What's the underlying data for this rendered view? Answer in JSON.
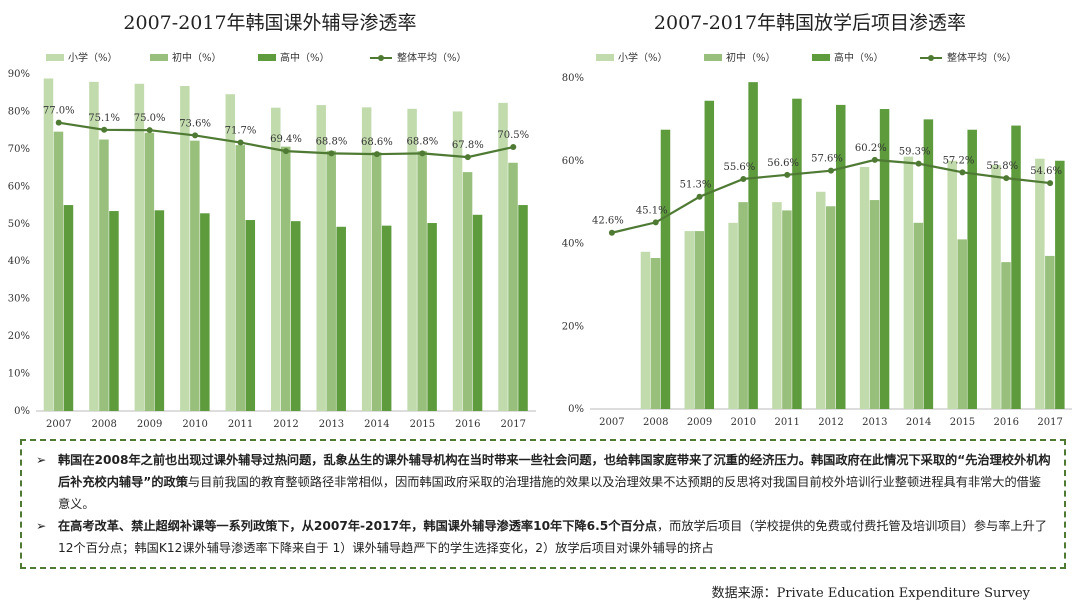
{
  "colors": {
    "primary": "#c2dbad",
    "junior": "#98c07c",
    "senior": "#5d9b3d",
    "average": "#4f7a34"
  },
  "chart_data": [
    {
      "type": "bar",
      "title": "2007-2017年韩国课外辅导渗透率",
      "categories": [
        "2007",
        "2008",
        "2009",
        "2010",
        "2011",
        "2012",
        "2013",
        "2014",
        "2015",
        "2016",
        "2017"
      ],
      "series": [
        {
          "name": "小学（%）",
          "values": [
            88.8,
            87.9,
            87.4,
            86.8,
            84.6,
            81.0,
            81.7,
            81.1,
            80.7,
            80.0,
            82.3
          ]
        },
        {
          "name": "初中（%）",
          "values": [
            74.6,
            72.5,
            74.3,
            72.2,
            71.0,
            70.6,
            69.5,
            69.1,
            69.4,
            63.8,
            66.3
          ]
        },
        {
          "name": "高中（%）",
          "values": [
            55.0,
            53.4,
            53.6,
            52.8,
            51.0,
            50.7,
            49.2,
            49.5,
            50.2,
            52.4,
            55.0
          ]
        }
      ],
      "line_series": {
        "name": "整体平均（%）",
        "values": [
          77.0,
          75.1,
          75.0,
          73.6,
          71.7,
          69.4,
          68.8,
          68.6,
          68.8,
          67.8,
          70.5
        ],
        "labels": [
          "77.0%",
          "75.1%",
          "75.0%",
          "73.6%",
          "71.7%",
          "69.4%",
          "68.8%",
          "68.6%",
          "68.8%",
          "67.8%",
          "70.5%"
        ]
      },
      "ylim": [
        0,
        90
      ],
      "yticks": [
        "0%",
        "10%",
        "20%",
        "30%",
        "40%",
        "50%",
        "60%",
        "70%",
        "80%",
        "90%"
      ],
      "grid": false
    },
    {
      "type": "bar",
      "title": "2007-2017年韩国放学后项目渗透率",
      "categories": [
        "2007",
        "2008",
        "2009",
        "2010",
        "2011",
        "2012",
        "2013",
        "2014",
        "2015",
        "2016",
        "2017"
      ],
      "series": [
        {
          "name": "小学（%）",
          "values": [
            null,
            38.0,
            43.0,
            45.0,
            50.0,
            52.5,
            58.5,
            61.0,
            60.0,
            59.0,
            60.5
          ]
        },
        {
          "name": "初中（%）",
          "values": [
            null,
            36.5,
            43.0,
            50.0,
            48.0,
            49.0,
            50.5,
            45.0,
            41.0,
            35.5,
            37.0
          ]
        },
        {
          "name": "高中（%）",
          "values": [
            null,
            67.5,
            74.5,
            79.0,
            75.0,
            73.5,
            72.5,
            70.0,
            67.5,
            68.5,
            60.0
          ]
        }
      ],
      "line_series": {
        "name": "整体平均（%）",
        "values": [
          42.6,
          45.1,
          51.3,
          55.6,
          56.6,
          57.6,
          60.2,
          59.3,
          57.2,
          55.8,
          54.6
        ],
        "labels": [
          "42.6%",
          "45.1%",
          "51.3%",
          "55.6%",
          "56.6%",
          "57.6%",
          "60.2%",
          "59.3%",
          "57.2%",
          "55.8%",
          "54.6%"
        ]
      },
      "ylim": [
        0,
        80
      ],
      "yticks": [
        "0%",
        "20%",
        "40%",
        "60%",
        "80%"
      ],
      "grid": false
    }
  ],
  "notes": [
    {
      "p1": "韩国在2008年之前也出现过课外辅导过热问题，乱象丛生的课外辅导机构在当时带来一些社会问题，也给韩国家庭带来了沉重的经济压力。韩国政府在此情况下采取的“先治理校外机构后补充校内辅导”的政策",
      "p2": "与目前我国的教育整顿路径非常相似，因而韩国政府采取的治理措施的效果以及治理效果不达预期的反思将对我国目前校外培训行业整顿进程具有非常大的借鉴意义。"
    },
    {
      "p1": "在高考改革、禁止超纲补课等一系列政策下，从2007年-2017年，韩国课外辅导渗透率10年下降6.5个百分点",
      "p2": "，而放学后项目（学校提供的免费或付费托管及培训项目）参与率上升了12个百分点；韩国K12课外辅导渗透率下降来自于 1）课外辅导趋严下的学生选择变化，2）放学后项目对课外辅导的挤占"
    }
  ],
  "source": "数据来源：Private Education Expenditure Survey"
}
